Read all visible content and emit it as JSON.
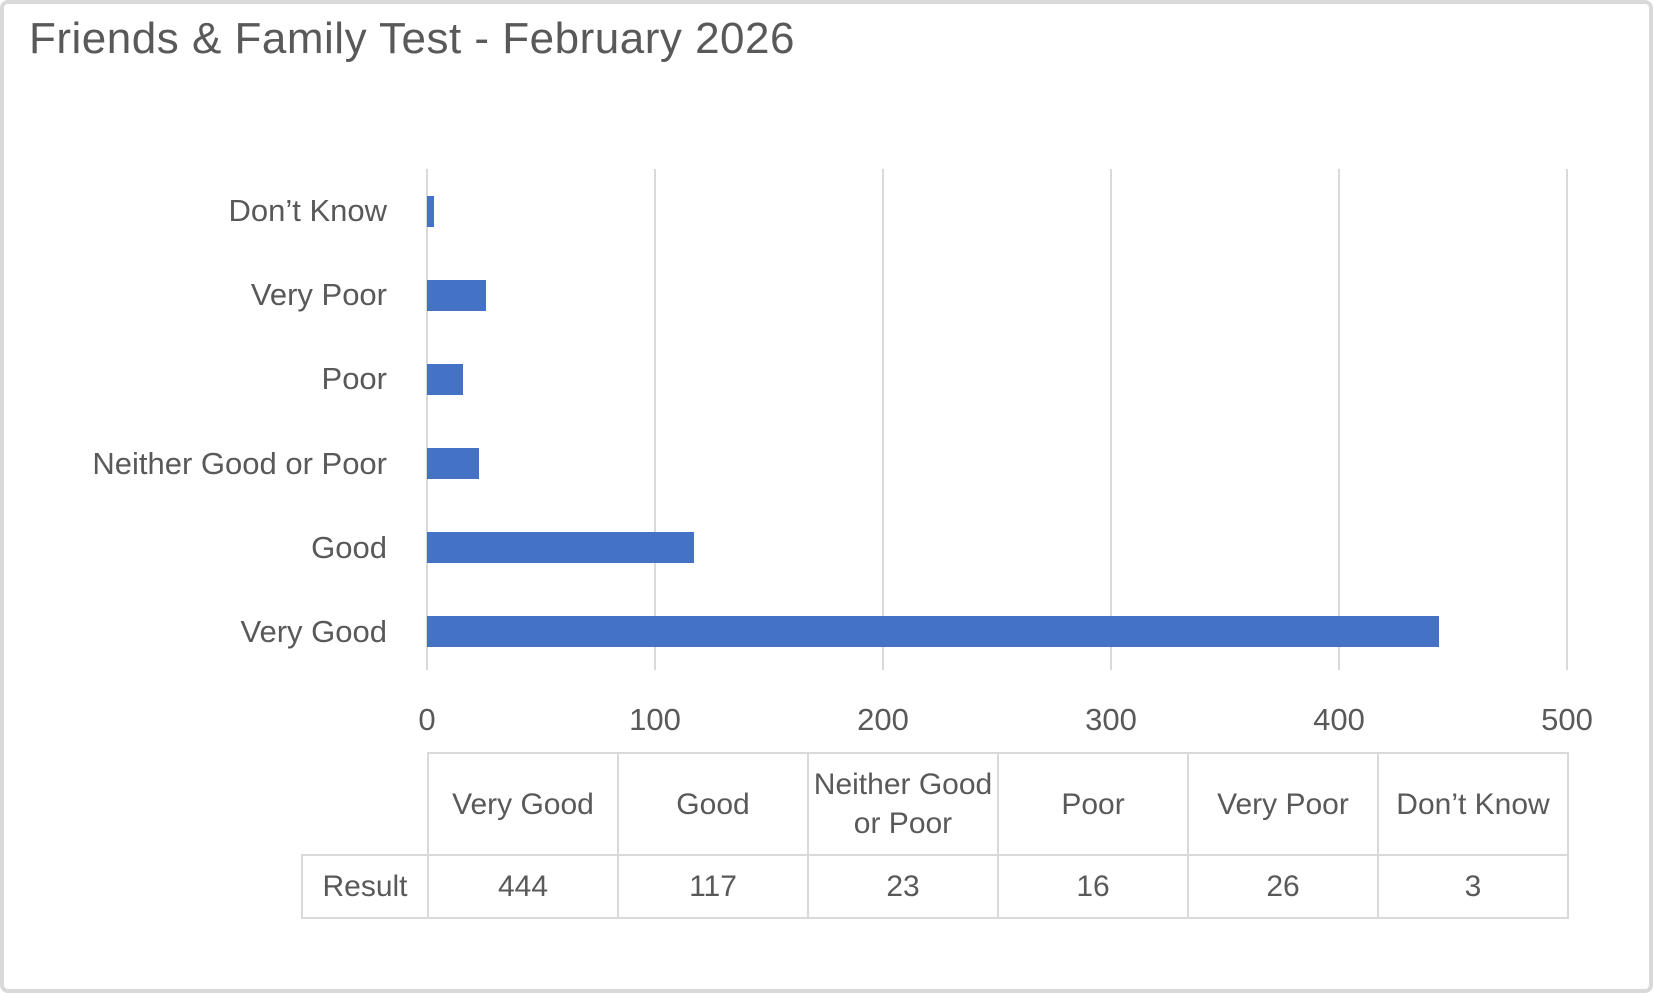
{
  "chart_data": {
    "type": "bar",
    "orientation": "horizontal",
    "title": "Friends & Family Test - February 2026",
    "categories": [
      "Very Good",
      "Good",
      "Neither Good or Poor",
      "Poor",
      "Very Poor",
      "Don’t Know"
    ],
    "values": [
      444,
      117,
      23,
      16,
      26,
      3
    ],
    "series_name": "Result",
    "plot_order_top_to_bottom": [
      "Don’t Know",
      "Very Poor",
      "Poor",
      "Neither Good or Poor",
      "Good",
      "Very Good"
    ],
    "xlabel": "",
    "ylabel": "",
    "xlim": [
      0,
      500
    ],
    "x_ticks": [
      0,
      100,
      200,
      300,
      400,
      500
    ],
    "grid": true,
    "legend": "none",
    "bar_color": "#4472C4",
    "gridline_color": "#D9D9D9",
    "text_color": "#595959"
  },
  "data_table": {
    "corner_label": "",
    "columns": [
      "Very Good",
      "Good",
      "Neither Good or Poor",
      "Poor",
      "Very Poor",
      "Don’t Know"
    ],
    "rows": [
      {
        "label": "Result",
        "values": [
          "444",
          "117",
          "23",
          "16",
          "26",
          "3"
        ]
      }
    ]
  }
}
